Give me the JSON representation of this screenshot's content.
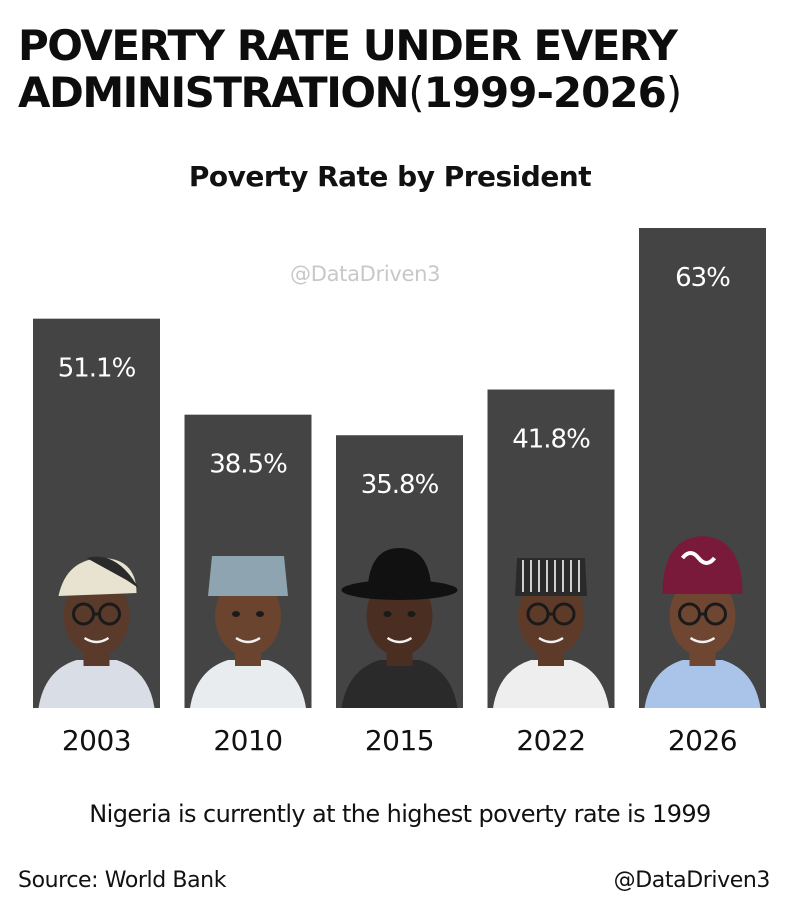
{
  "header": {
    "title_line1": "POVERTY RATE UNDER EVERY",
    "title_line2_word": "ADMINISTRATION",
    "title_open_paren": "(",
    "title_years": "1999-2026",
    "title_close_paren": ")"
  },
  "watermark": "@DataDriven3",
  "caption": "Nigeria is currently at the highest poverty rate is 1999",
  "footer": {
    "source": "Source: World Bank",
    "handle": "@DataDriven3"
  },
  "colors": {
    "bar": "#444444",
    "bar_label": "#ffffff",
    "text": "#111111"
  },
  "chart_data": {
    "type": "bar",
    "title": "Poverty Rate by President",
    "xlabel": "",
    "ylabel": "",
    "categories": [
      "2003",
      "2010",
      "2015",
      "2022",
      "2026"
    ],
    "values": [
      51.1,
      38.5,
      35.8,
      41.8,
      63
    ],
    "data_labels": [
      "51.1%",
      "38.5%",
      "35.8%",
      "41.8%",
      "63%"
    ],
    "portraits": [
      "president-2003-portrait",
      "president-2010-portrait",
      "president-2015-portrait",
      "president-2022-portrait",
      "president-2026-portrait"
    ],
    "ylim": [
      0,
      63
    ]
  }
}
